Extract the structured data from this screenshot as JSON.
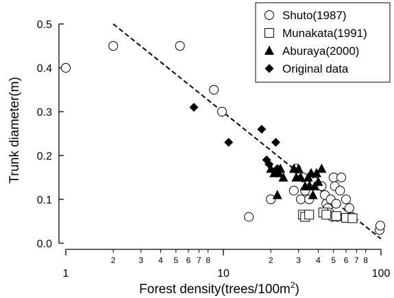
{
  "chart_data": {
    "type": "scatter",
    "xlabel": "Forest density(trees/100m",
    "xlabel_sup": "2",
    "xlabel_close": ")",
    "ylabel": "Trunk diameter(m)",
    "x_scale": "log",
    "xlim": [
      1,
      100
    ],
    "ylim": [
      0,
      0.5
    ],
    "x_major_ticks": [
      {
        "v": 1,
        "label": "1"
      },
      {
        "v": 10,
        "label": "10"
      },
      {
        "v": 100,
        "label": "100"
      }
    ],
    "x_minor_ticks": [
      {
        "v": 2,
        "label": "2"
      },
      {
        "v": 3,
        "label": "3"
      },
      {
        "v": 4,
        "label": "4"
      },
      {
        "v": 5,
        "label": "5"
      },
      {
        "v": 6,
        "label": "6"
      },
      {
        "v": 7,
        "label": "7"
      },
      {
        "v": 8,
        "label": "8"
      },
      {
        "v": 20,
        "label": "2"
      },
      {
        "v": 30,
        "label": "3"
      },
      {
        "v": 40,
        "label": "4"
      },
      {
        "v": 50,
        "label": "5"
      },
      {
        "v": 60,
        "label": "6"
      },
      {
        "v": 70,
        "label": "7"
      },
      {
        "v": 80,
        "label": "8"
      }
    ],
    "y_ticks": [
      {
        "v": 0.0,
        "label": "0.0"
      },
      {
        "v": 0.1,
        "label": "0.1"
      },
      {
        "v": 0.2,
        "label": "0.2"
      },
      {
        "v": 0.3,
        "label": "0.3"
      },
      {
        "v": 0.4,
        "label": "0.4"
      },
      {
        "v": 0.5,
        "label": "0.5"
      }
    ],
    "legend_position": "top-right",
    "series": [
      {
        "name": "Shuto(1987)",
        "marker": "circle-open",
        "points": [
          [
            1.0,
            0.4
          ],
          [
            2.0,
            0.45
          ],
          [
            5.3,
            0.45
          ],
          [
            8.7,
            0.35
          ],
          [
            9.8,
            0.3
          ],
          [
            14.5,
            0.06
          ],
          [
            20.0,
            0.1
          ],
          [
            28.0,
            0.12
          ],
          [
            29.0,
            0.17
          ],
          [
            31.0,
            0.1
          ],
          [
            32.0,
            0.15
          ],
          [
            33.0,
            0.12
          ],
          [
            35.0,
            0.1
          ],
          [
            38.0,
            0.14
          ],
          [
            42.0,
            0.13
          ],
          [
            44.0,
            0.11
          ],
          [
            45.0,
            0.09
          ],
          [
            46.0,
            0.08
          ],
          [
            47.0,
            0.07
          ],
          [
            48.0,
            0.1
          ],
          [
            49.0,
            0.06
          ],
          [
            50.0,
            0.15
          ],
          [
            51.0,
            0.13
          ],
          [
            52.0,
            0.09
          ],
          [
            53.0,
            0.06
          ],
          [
            55.0,
            0.12
          ],
          [
            56.0,
            0.15
          ],
          [
            60.0,
            0.1
          ],
          [
            63.0,
            0.08
          ],
          [
            65.0,
            0.06
          ],
          [
            98.0,
            0.03
          ],
          [
            99.0,
            0.04
          ]
        ]
      },
      {
        "name": "Munakata(1991)",
        "marker": "square-open",
        "points": [
          [
            32.0,
            0.065
          ],
          [
            33.0,
            0.06
          ],
          [
            35.0,
            0.065
          ],
          [
            43.0,
            0.07
          ],
          [
            45.0,
            0.065
          ],
          [
            52.0,
            0.062
          ],
          [
            60.0,
            0.058
          ],
          [
            66.0,
            0.057
          ]
        ]
      },
      {
        "name": "Aburaya(2000)",
        "marker": "triangle-filled",
        "points": [
          [
            20.0,
            0.17
          ],
          [
            21.0,
            0.16
          ],
          [
            22.0,
            0.11
          ],
          [
            22.5,
            0.16
          ],
          [
            23.0,
            0.17
          ],
          [
            24.0,
            0.15
          ],
          [
            28.0,
            0.17
          ],
          [
            29.0,
            0.15
          ],
          [
            30.0,
            0.17
          ],
          [
            31.0,
            0.15
          ],
          [
            33.0,
            0.13
          ],
          [
            34.5,
            0.15
          ],
          [
            35.0,
            0.13
          ],
          [
            36.0,
            0.16
          ],
          [
            37.0,
            0.11
          ],
          [
            38.0,
            0.13
          ],
          [
            39.0,
            0.16
          ],
          [
            40.0,
            0.14
          ],
          [
            42.0,
            0.17
          ]
        ]
      },
      {
        "name": "Original data",
        "marker": "diamond-filled",
        "points": [
          [
            6.5,
            0.31
          ],
          [
            10.8,
            0.23
          ],
          [
            17.5,
            0.26
          ],
          [
            18.8,
            0.19
          ],
          [
            19.5,
            0.18
          ],
          [
            21.5,
            0.23
          ],
          [
            22.0,
            0.17
          ]
        ]
      }
    ],
    "trend_line": {
      "style": "dashed",
      "points": [
        [
          2.0,
          0.5
        ],
        [
          100.0,
          0.01
        ]
      ]
    }
  }
}
